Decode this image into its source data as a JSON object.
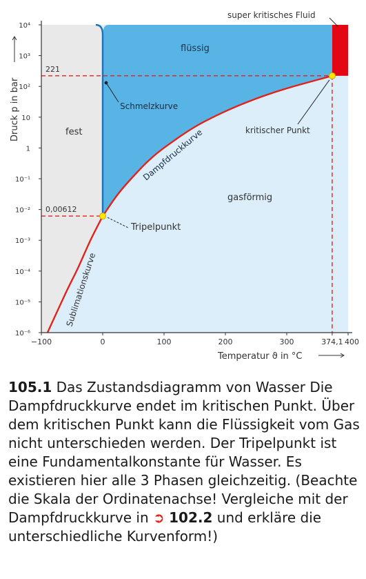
{
  "chart_data": {
    "type": "area",
    "title": "",
    "xlabel": "Temperatur ϑ in °C",
    "ylabel": "Druck p in bar",
    "x_ticks": [
      "−100",
      "0",
      "100",
      "200",
      "300",
      "374,1",
      "400"
    ],
    "y_ticks": [
      "10⁻⁶",
      "10⁻⁵",
      "10⁻⁴",
      "10⁻³",
      "10⁻²",
      "10⁻¹",
      "1",
      "10",
      "10²",
      "10³",
      "10⁴"
    ],
    "xlim": [
      -100,
      400
    ],
    "ylim": [
      1e-06,
      10000
    ],
    "y_scale": "log",
    "regions": [
      {
        "name": "fest",
        "color": "#e9e9ea"
      },
      {
        "name": "flüssig",
        "color": "#57b4e4"
      },
      {
        "name": "gasförmig",
        "color": "#dbeef9"
      },
      {
        "name": "super kritisches Fluid",
        "color": "#e30613"
      }
    ],
    "series": [
      {
        "name": "Sublimationskurve",
        "color": "#e2231a",
        "points": [
          [
            -90,
            1e-06
          ],
          [
            -60,
            2e-05
          ],
          [
            -40,
            0.00013
          ],
          [
            -20,
            0.001
          ],
          [
            0.01,
            0.00612
          ]
        ]
      },
      {
        "name": "Dampfdruckkurve",
        "color": "#e2231a",
        "points": [
          [
            0.01,
            0.00612
          ],
          [
            25,
            0.032
          ],
          [
            50,
            0.12
          ],
          [
            75,
            0.39
          ],
          [
            100,
            1.01
          ],
          [
            150,
            4.8
          ],
          [
            200,
            15.5
          ],
          [
            250,
            39.8
          ],
          [
            300,
            85.9
          ],
          [
            374.1,
            221
          ]
        ]
      },
      {
        "name": "Schmelzkurve",
        "color": "#1d71b8",
        "points": [
          [
            0.01,
            0.00612
          ],
          [
            0,
            100
          ],
          [
            -1,
            2000
          ],
          [
            -5,
            7000
          ],
          [
            -10,
            10000
          ]
        ]
      }
    ],
    "points": [
      {
        "name": "Tripelpunkt",
        "x": 0.01,
        "y": 0.00612,
        "label": "0,00612"
      },
      {
        "name": "kritischer Punkt",
        "x": 374.1,
        "y": 221,
        "label": "221"
      }
    ],
    "annotations": [
      "flüssig",
      "fest",
      "gasförmig",
      "Schmelzkurve",
      "Dampfdruckkurve",
      "Sublimationskurve",
      "Tripelpunkt",
      "kritischer Punkt",
      "super kritisches Fluid"
    ]
  },
  "caption": {
    "number": "105.1",
    "text": "Das Zustandsdiagramm von Wasser Die Dampfdruckkurve endet im kritischen Punkt. Über dem kritischen Punkt kann die Flüssigkeit vom Gas nicht unterschieden werden. Der Tripelpunkt ist eine Fundamentalkonstante für Wasser. Es existieren hier alle 3 Phasen gleichzeitig. (Beachte die Skala der Ordinatenachse! Vergleiche mit der Dampfdruckkurve in",
    "ref_number": "102.2",
    "text_after": "und erkläre die unterschiedliche Kurvenform!)"
  }
}
